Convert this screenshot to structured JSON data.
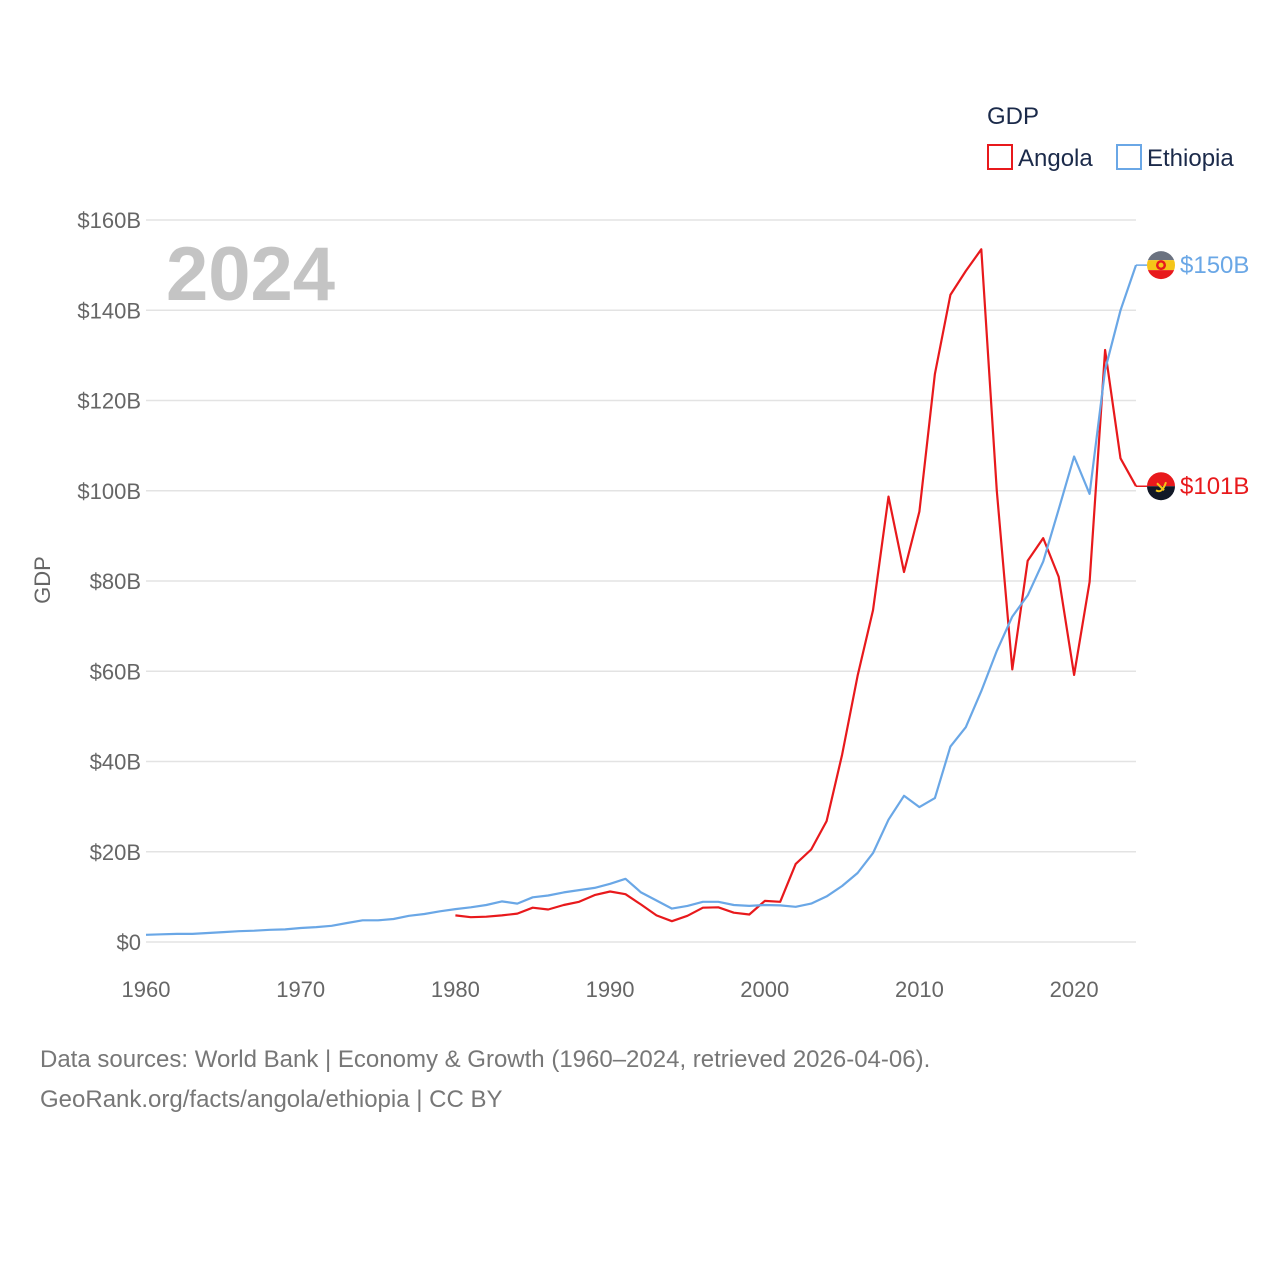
{
  "chart_data": {
    "type": "line",
    "title": "",
    "ylabel": "GDP",
    "xlabel": "",
    "year_display": "2024",
    "xlim": [
      1960,
      2024
    ],
    "ylim": [
      0,
      160
    ],
    "x_ticks": [
      "1960",
      "1970",
      "1980",
      "1990",
      "2000",
      "2010",
      "2020"
    ],
    "x_tick_values": [
      1960,
      1970,
      1980,
      1990,
      2000,
      2010,
      2020
    ],
    "y_ticks": [
      "$0",
      "$20B",
      "$40B",
      "$60B",
      "$80B",
      "$100B",
      "$120B",
      "$140B",
      "$160B"
    ],
    "y_tick_values": [
      0,
      20,
      40,
      60,
      80,
      100,
      120,
      140,
      160
    ],
    "legend": {
      "title": "GDP",
      "position": "top-right"
    },
    "series": [
      {
        "name": "Angola",
        "color": "#e8191c",
        "end_label": "$101B",
        "flag_icon": "angola-flag-icon",
        "x": [
          1980,
          1981,
          1982,
          1983,
          1984,
          1985,
          1986,
          1987,
          1988,
          1989,
          1990,
          1991,
          1992,
          1993,
          1994,
          1995,
          1996,
          1997,
          1998,
          1999,
          2000,
          2001,
          2002,
          2003,
          2004,
          2005,
          2006,
          2007,
          2008,
          2009,
          2010,
          2011,
          2012,
          2013,
          2014,
          2015,
          2016,
          2017,
          2018,
          2019,
          2020,
          2021,
          2022,
          2023,
          2024
        ],
        "values": [
          5.9,
          5.5,
          5.6,
          5.9,
          6.3,
          7.6,
          7.2,
          8.2,
          8.9,
          10.4,
          11.2,
          10.6,
          8.3,
          5.9,
          4.6,
          5.8,
          7.6,
          7.7,
          6.5,
          6.1,
          9.1,
          8.9,
          17.3,
          20.5,
          26.8,
          41.5,
          59.0,
          73.5,
          98.7,
          82.0,
          95.4,
          125.9,
          143.4,
          148.7,
          153.5,
          100.0,
          60.4,
          84.5,
          89.5,
          80.9,
          59.2,
          79.8,
          131.2,
          107.2,
          101.0
        ]
      },
      {
        "name": "Ethiopia",
        "color": "#6aa7e6",
        "end_label": "$150B",
        "flag_icon": "ethiopia-flag-icon",
        "x": [
          1960,
          1961,
          1962,
          1963,
          1964,
          1965,
          1966,
          1967,
          1968,
          1969,
          1970,
          1971,
          1972,
          1973,
          1974,
          1975,
          1976,
          1977,
          1978,
          1979,
          1980,
          1981,
          1982,
          1983,
          1984,
          1985,
          1986,
          1987,
          1988,
          1989,
          1990,
          1991,
          1992,
          1993,
          1994,
          1995,
          1996,
          1997,
          1998,
          1999,
          2000,
          2001,
          2002,
          2003,
          2004,
          2005,
          2006,
          2007,
          2008,
          2009,
          2010,
          2011,
          2012,
          2013,
          2014,
          2015,
          2016,
          2017,
          2018,
          2019,
          2020,
          2021,
          2022,
          2023,
          2024
        ],
        "values": [
          1.6,
          1.7,
          1.8,
          1.8,
          2.0,
          2.2,
          2.4,
          2.5,
          2.7,
          2.8,
          3.1,
          3.3,
          3.6,
          4.2,
          4.8,
          4.8,
          5.1,
          5.8,
          6.2,
          6.8,
          7.3,
          7.7,
          8.2,
          9.0,
          8.5,
          9.9,
          10.3,
          11.0,
          11.5,
          12.0,
          12.9,
          14.0,
          11.0,
          9.2,
          7.4,
          8.0,
          8.9,
          8.9,
          8.2,
          8.0,
          8.2,
          8.1,
          7.8,
          8.5,
          10.1,
          12.4,
          15.3,
          19.7,
          27.1,
          32.4,
          29.9,
          31.9,
          43.3,
          47.6,
          55.6,
          64.5,
          72.1,
          76.8,
          84.3,
          95.9,
          107.6,
          99.3,
          126.8,
          140.0,
          150.0
        ]
      }
    ]
  },
  "footer": {
    "line1": "Data sources: World Bank | Economy & Growth (1960–2024, retrieved 2026-04-06).",
    "line2": "GeoRank.org/facts/angola/ethiopia | CC BY"
  }
}
